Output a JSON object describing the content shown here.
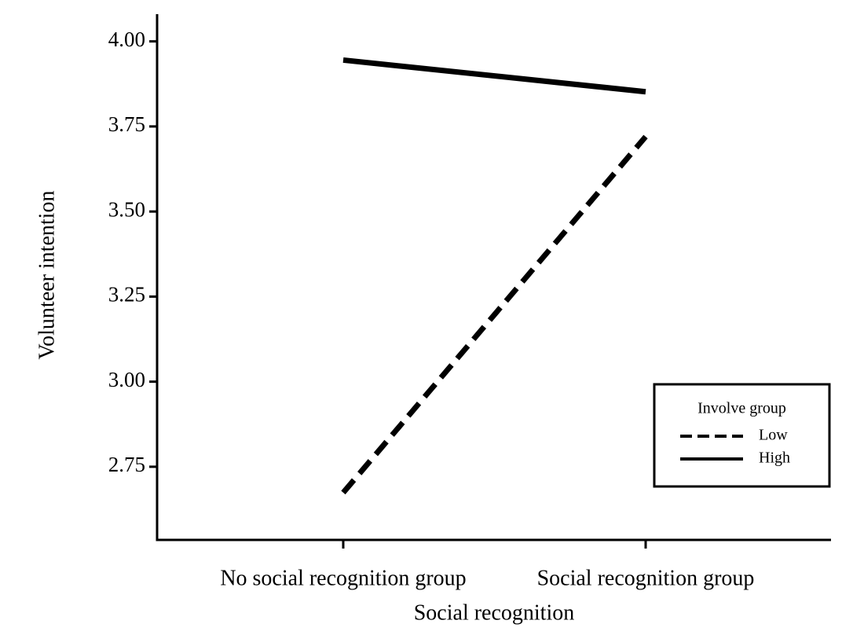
{
  "chart_data": {
    "type": "line",
    "x_label": "Social recognition",
    "y_label": "Volunteer intention",
    "categories": [
      "No social recognition group",
      "Social recognition group"
    ],
    "series": [
      {
        "name": "Low",
        "color": "#000000",
        "style": "dashed",
        "values": [
          2.674,
          3.72
        ]
      },
      {
        "name": "High",
        "color": "#000000",
        "style": "solid",
        "values": [
          3.945,
          3.852
        ]
      }
    ],
    "ylim": [
      2.535,
      4.08
    ],
    "yticks": [
      {
        "value": 2.75,
        "label": "2.75"
      },
      {
        "value": 3,
        "label": "3.00"
      },
      {
        "value": 3.25,
        "label": "3.25"
      },
      {
        "value": 3.5,
        "label": "3.50"
      },
      {
        "value": 3.75,
        "label": "3.75"
      },
      {
        "value": 4,
        "label": "4.00"
      }
    ],
    "legend_title": "Involve group",
    "legend_position": "lower right",
    "grid": false
  }
}
